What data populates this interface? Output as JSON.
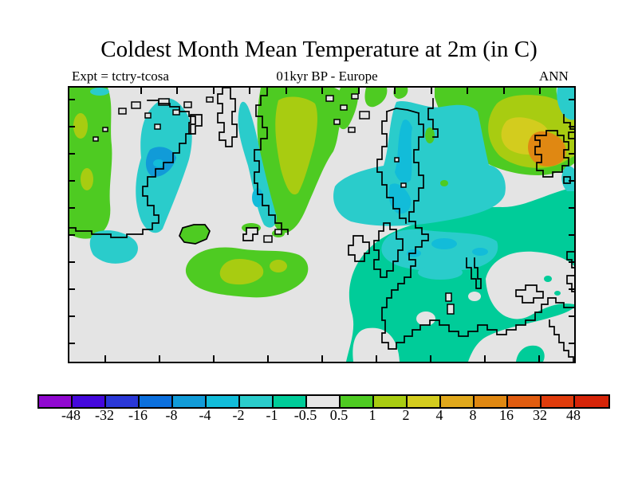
{
  "header": {
    "title": "Coldest Month Mean Temperature at 2m (in C)",
    "expt": "Expt = tctry-tcosa",
    "period": "01kyr BP - Europe",
    "season": "ANN"
  },
  "palette": {
    "gray": "#e4e4e4",
    "teal": "#00cc99",
    "cyan": "#2acccb",
    "cyan2": "#12bcd9",
    "blue": "#119bd8",
    "green": "#4ecb22",
    "ygreen": "#a8cc11",
    "yellow": "#d3cc1e",
    "orange": "#e08812"
  },
  "chart_data": {
    "type": "heatmap",
    "title": "Coldest Month Mean Temperature at 2m (in C)",
    "subtitle_left": "Expt = tctry-tcosa",
    "subtitle_center": "01kyr BP - Europe",
    "subtitle_right": "ANN",
    "units": "C",
    "region_shown": "Europe and North Atlantic",
    "colorbar": {
      "orientation": "horizontal",
      "scale": "nonlinear level bins",
      "tick_labels": [
        "-48",
        "-32",
        "-16",
        "-8",
        "-4",
        "-2",
        "-1",
        "-0.5",
        "0.5",
        "1",
        "2",
        "4",
        "8",
        "16",
        "32",
        "48"
      ],
      "colors": [
        "#9008d0",
        "#4408dc",
        "#2a38d8",
        "#0b6fdd",
        "#119bd8",
        "#12bcd9",
        "#2acccb",
        "#00cc99",
        "#e6e6e6",
        "#4ecb22",
        "#a8cc11",
        "#d3cc1e",
        "#e0a81c",
        "#e08812",
        "#e05c10",
        "#e03c0c",
        "#d62408"
      ]
    },
    "map_features": [
      {
        "region": "Western Europe, Iberia and Mediterranean",
        "value_range": "-1 to -0.5"
      },
      {
        "region": "Seas around British Isles and North Sea",
        "value_range": "-2 to -1"
      },
      {
        "region": "Gulf of Bothnia / Baltic and White Sea",
        "value_range": "-4 to -2"
      },
      {
        "region": "Sea west of Greenland (Baffin Bay core)",
        "value_range": "-8 to -4"
      },
      {
        "region": "Scandinavian landmass",
        "value_range": "0.5 to 2"
      },
      {
        "region": "Northern Russia plain",
        "value_range": "1 to 4"
      },
      {
        "region": "Spot near Urals at right edge",
        "value_range": "8 to 16"
      },
      {
        "region": "Mid-Atlantic patch",
        "value_range": "0.5 to 2"
      },
      {
        "region": "Greenland interior, eastern Europe, open Atlantic",
        "value_range": "-0.5 to 0.5"
      }
    ]
  }
}
